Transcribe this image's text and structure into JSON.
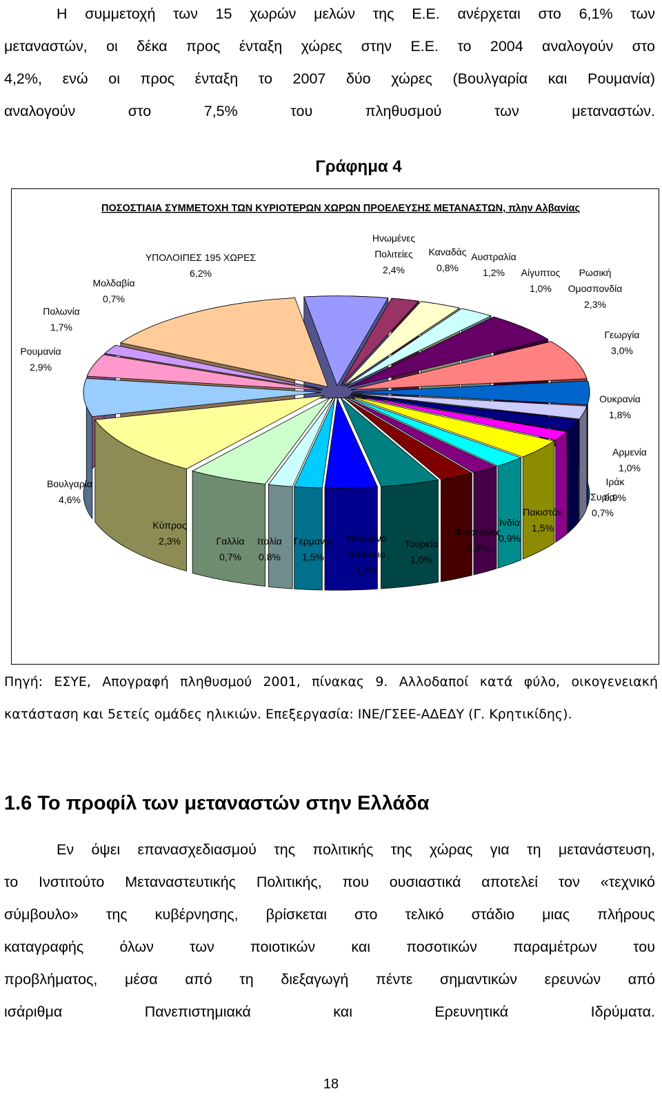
{
  "intro_paragraph": {
    "lines": [
      "Η συμμετοχή των 15 χωρών μελών της Ε.Ε. ανέρχεται στο 6,1% των",
      "μεταναστών, οι δέκα προς ένταξη χώρες στην Ε.Ε. το 2004 αναλογούν στο",
      "4,2%, ενώ οι προς ένταξη το 2007 δύο χώρες (Βουλγαρία και Ρουμανία)",
      "αναλογούν στο 7,5% του πληθυσμού των μεταναστών."
    ]
  },
  "figure_label": "Γράφημα 4",
  "chart_data": {
    "type": "pie",
    "title": "ΠΟΣΟΣΤΙΑΙΑ ΣΥΜΜΕΤΟΧΗ ΤΩΝ ΚΥΡΙΟΤΕΡΩΝ ΧΩΡΩΝ ΠΡΟΕΛΕΥΣΗΣ ΜΕΤΑΝΑΣΤΩΝ, πλην Αλβανίας",
    "style": "3d-exploded",
    "slices": [
      {
        "label": [
          "Ηνωμένες",
          "Πολιτείες"
        ],
        "value": "2,4%",
        "pct": 2.4,
        "color": "#9999ff"
      },
      {
        "label": [
          "Καναδάς"
        ],
        "value": "0,8%",
        "pct": 0.8,
        "color": "#993366"
      },
      {
        "label": [
          "Αυστραλία"
        ],
        "value": "1,2%",
        "pct": 1.2,
        "color": "#ffffcc"
      },
      {
        "label": [
          "Αίγυπτος"
        ],
        "value": "1,0%",
        "pct": 1.0,
        "color": "#ccffff"
      },
      {
        "label": [
          "Ρωσική",
          "Ομοσπονδία"
        ],
        "value": "2,3%",
        "pct": 2.3,
        "color": "#660066"
      },
      {
        "label": [
          "Γεωργία"
        ],
        "value": "3,0%",
        "pct": 3.0,
        "color": "#ff8080"
      },
      {
        "label": [
          "Ουκρανία"
        ],
        "value": "1,8%",
        "pct": 1.8,
        "color": "#0066cc"
      },
      {
        "label": [
          "Αρμενία"
        ],
        "value": "1,0%",
        "pct": 1.0,
        "color": "#ccccff"
      },
      {
        "label": [
          "Ιράκ"
        ],
        "value": "0,9%",
        "pct": 0.9,
        "color": "#000080"
      },
      {
        "label": [
          "Συρία"
        ],
        "value": "0,7%",
        "pct": 0.7,
        "color": "#ff00ff"
      },
      {
        "label": [
          "Πακιστάν"
        ],
        "value": "1,5%",
        "pct": 1.5,
        "color": "#ffff00"
      },
      {
        "label": [
          "Ινδία"
        ],
        "value": "0,9%",
        "pct": 0.9,
        "color": "#00ffff"
      },
      {
        "label": [
          "Φιλιππίνες"
        ],
        "value": "0,8%",
        "pct": 0.8,
        "color": "#800080"
      },
      {
        "label": [
          "Τουρκία"
        ],
        "value": "1,0%",
        "pct": 1.0,
        "color": "#800000"
      },
      {
        "label": [
          "Ηνωμένο",
          "Βασίλειο"
        ],
        "value": "1,7%",
        "pct": 1.7,
        "color": "#008080"
      },
      {
        "label": [
          "Γερμανία"
        ],
        "value": "1,5%",
        "pct": 1.5,
        "color": "#0000ff"
      },
      {
        "label": [
          "Ιταλία"
        ],
        "value": "0,8%",
        "pct": 0.8,
        "color": "#00ccff"
      },
      {
        "label": [
          "Γαλλία"
        ],
        "value": "0,7%",
        "pct": 0.7,
        "color": "#ccffff"
      },
      {
        "label": [
          "Κύπρος"
        ],
        "value": "2,3%",
        "pct": 2.3,
        "color": "#ccffcc"
      },
      {
        "label": [
          "Βουλγαρία"
        ],
        "value": "4,6%",
        "pct": 4.6,
        "color": "#ffff99"
      },
      {
        "label": [
          "Ρουμανία"
        ],
        "value": "2,9%",
        "pct": 2.9,
        "color": "#99ccff"
      },
      {
        "label": [
          "Πολωνία"
        ],
        "value": "1,7%",
        "pct": 1.7,
        "color": "#ff99cc"
      },
      {
        "label": [
          "Μολδαβία"
        ],
        "value": "0,7%",
        "pct": 0.7,
        "color": "#cc99ff"
      },
      {
        "label": [
          "ΥΠΟΛΟΙΠΕΣ 195 ΧΩΡΕΣ"
        ],
        "value": "6,2%",
        "pct": 6.2,
        "color": "#ffcc99"
      }
    ]
  },
  "source_note": {
    "lines": [
      "Πηγή: ΕΣΥΕ, Απογραφή πληθυσμού 2001, πίνακας 9. Αλλοδαποί κατά φύλο, οικογενειακή",
      "κατάσταση και 5ετείς ομάδες ηλικιών. Επεξεργασία: ΙΝΕ/ΓΣΕΕ-ΑΔΕΔΥ (Γ. Κρητικίδης)."
    ]
  },
  "section_heading": "1.6 Το προφίλ των μεταναστών στην Ελλάδα",
  "body_paragraph": {
    "lines": [
      "Εν όψει επανασχεδιασμού της πολιτικής της χώρας για τη μετανάστευση,",
      "το Ινστιτούτο Μεταναστευτικής Πολιτικής, που ουσιαστικά αποτελεί τον «τεχνικό",
      "σύμβουλο» της κυβέρνησης, βρίσκεται στο τελικό στάδιο μιας πλήρους",
      "καταγραφής όλων των ποιοτικών και ποσοτικών παραμέτρων του",
      "προβλήματος, μέσα από τη διεξαγωγή πέντε σημαντικών ερευνών από",
      "ισάριθμα Πανεπιστημιακά και Ερευνητικά Ιδρύματα."
    ]
  },
  "page_number": "18"
}
